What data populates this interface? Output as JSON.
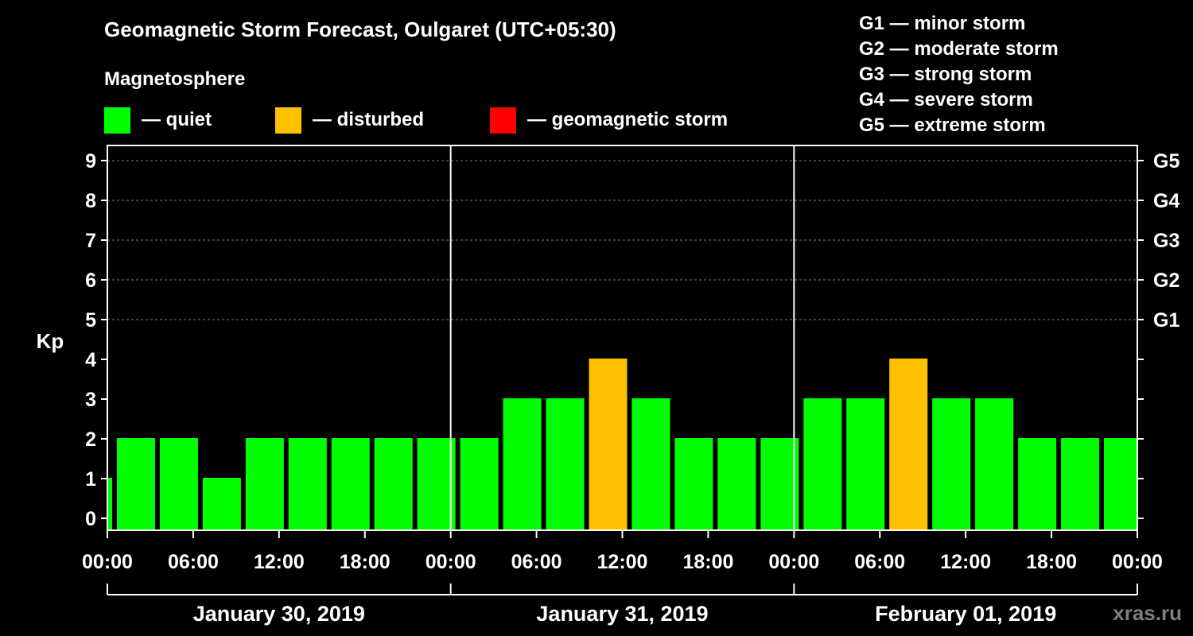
{
  "title": "Geomagnetic Storm Forecast, Oulgaret (UTC+05:30)",
  "legend": {
    "title": "Magnetosphere",
    "items": [
      {
        "label": "— quiet",
        "color": "#00ff00"
      },
      {
        "label": "— disturbed",
        "color": "#ffc000"
      },
      {
        "label": "— geomagnetic storm",
        "color": "#ff0000"
      }
    ]
  },
  "storm_levels": [
    "G1 — minor storm",
    "G2 — moderate storm",
    "G3 — strong storm",
    "G4 — severe storm",
    "G5 — extreme storm"
  ],
  "watermark": "xras.ru",
  "chart_data": {
    "type": "bar",
    "ylabel": "Kp",
    "ylim": [
      0,
      9
    ],
    "y_ticks": [
      "0",
      "1",
      "2",
      "3",
      "4",
      "5",
      "6",
      "7",
      "8",
      "9"
    ],
    "g_scale_ticks": [
      {
        "kp": 5,
        "label": "G1"
      },
      {
        "kp": 6,
        "label": "G2"
      },
      {
        "kp": 7,
        "label": "G3"
      },
      {
        "kp": 8,
        "label": "G4"
      },
      {
        "kp": 9,
        "label": "G5"
      }
    ],
    "x_tick_labels": [
      "00:00",
      "06:00",
      "12:00",
      "18:00",
      "00:00",
      "06:00",
      "12:00",
      "18:00",
      "00:00",
      "06:00",
      "12:00",
      "18:00",
      "00:00"
    ],
    "days": [
      "January 30, 2019",
      "January 31, 2019",
      "February 01, 2019"
    ],
    "hours_per_bar": 3,
    "first_bar_hour_offset": -2.5,
    "values": [
      1,
      2,
      2,
      1,
      2,
      2,
      2,
      2,
      2,
      2,
      3,
      3,
      4,
      3,
      2,
      2,
      2,
      3,
      3,
      4,
      3,
      3,
      2,
      2,
      2
    ],
    "thresholds": {
      "disturbed": 4,
      "storm": 5
    },
    "colors": {
      "quiet": "#00ff00",
      "disturbed": "#ffc000",
      "storm": "#ff0000"
    }
  }
}
